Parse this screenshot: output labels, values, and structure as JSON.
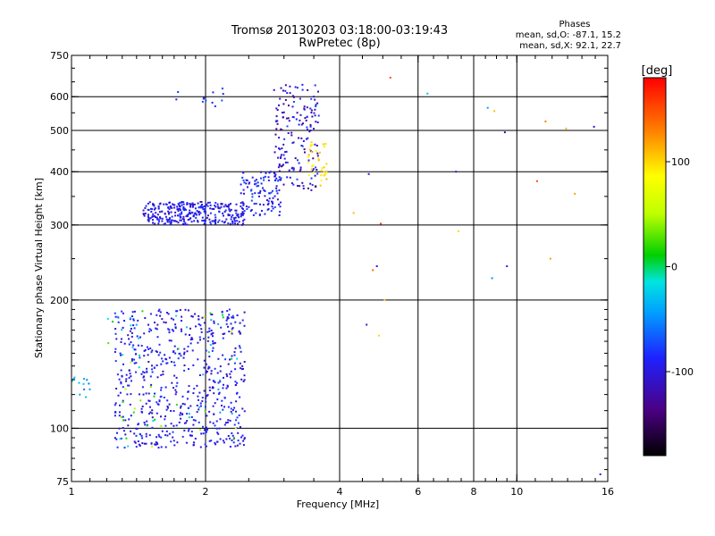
{
  "chart_data": {
    "type": "scatter",
    "title": "Tromsø 20130203 03:18:00-03:19:43",
    "subtitle": "RwPretec (8p)",
    "xlabel": "Frequency [MHz]",
    "ylabel": "Stationary phase Virtual Height [km]",
    "x_scale": "log",
    "y_scale": "log",
    "xlim": [
      1,
      16
    ],
    "ylim": [
      75,
      750
    ],
    "x_ticks": [
      1,
      2,
      4,
      6,
      8,
      10,
      16
    ],
    "x_tick_labels": [
      "1",
      "2",
      "4",
      "6",
      "8",
      "10",
      "16"
    ],
    "x_grid": [
      2,
      4,
      6,
      8,
      10
    ],
    "y_ticks": [
      75,
      100,
      200,
      300,
      400,
      500,
      600,
      750
    ],
    "y_tick_labels": [
      "75",
      "100",
      "200",
      "300",
      "400",
      "500",
      "600",
      "750"
    ],
    "y_grid": [
      100,
      200,
      300,
      400,
      500,
      600
    ],
    "grid": true,
    "stats": {
      "heading": "Phases",
      "line_o": "mean, sd,O: -87.1, 15.2",
      "line_x": "mean, sd,X:  92.1, 22.7"
    },
    "colorbar": {
      "label": "[deg]",
      "range": [
        -180,
        180
      ],
      "ticks": [
        100,
        0,
        -100
      ],
      "tick_labels": [
        "100",
        "0",
        "-100"
      ]
    },
    "clusters": [
      {
        "f": [
          1.45,
          2.45
        ],
        "h": [
          300,
          340
        ],
        "phase": [
          -115,
          -75
        ],
        "n": 320
      },
      {
        "f": [
          2.4,
          2.95
        ],
        "h": [
          315,
          400
        ],
        "phase": [
          -110,
          -70
        ],
        "n": 110
      },
      {
        "f": [
          2.85,
          3.6
        ],
        "h": [
          360,
          640
        ],
        "phase": [
          -140,
          -70
        ],
        "n": 170
      },
      {
        "f": [
          3.4,
          3.75
        ],
        "h": [
          370,
          470
        ],
        "phase": [
          80,
          120
        ],
        "n": 35
      },
      {
        "f": [
          1.25,
          2.45
        ],
        "h": [
          90,
          190
        ],
        "phase": [
          -115,
          -75
        ],
        "n": 620
      },
      {
        "f": [
          1.2,
          2.4
        ],
        "h": [
          90,
          190
        ],
        "phase": [
          -40,
          60
        ],
        "n": 60
      },
      {
        "f": [
          1.0,
          1.1
        ],
        "h": [
          118,
          132
        ],
        "phase": [
          -60,
          -25
        ],
        "n": 12
      },
      {
        "f": [
          1.7,
          2.2
        ],
        "h": [
          560,
          640
        ],
        "phase": [
          -100,
          -60
        ],
        "n": 12
      }
    ],
    "points": [
      {
        "f": 4.3,
        "h": 320,
        "phase": 110
      },
      {
        "f": 4.65,
        "h": 395,
        "phase": -110
      },
      {
        "f": 4.75,
        "h": 235,
        "phase": 140
      },
      {
        "f": 4.85,
        "h": 240,
        "phase": -100
      },
      {
        "f": 4.95,
        "h": 302,
        "phase": 160
      },
      {
        "f": 5.05,
        "h": 200,
        "phase": 105
      },
      {
        "f": 5.2,
        "h": 665,
        "phase": 150
      },
      {
        "f": 6.3,
        "h": 610,
        "phase": -30
      },
      {
        "f": 7.3,
        "h": 400,
        "phase": -100
      },
      {
        "f": 7.4,
        "h": 290,
        "phase": 100
      },
      {
        "f": 8.6,
        "h": 565,
        "phase": -40
      },
      {
        "f": 8.8,
        "h": 225,
        "phase": -50
      },
      {
        "f": 8.9,
        "h": 555,
        "phase": 110
      },
      {
        "f": 9.4,
        "h": 495,
        "phase": -120
      },
      {
        "f": 9.5,
        "h": 240,
        "phase": -95
      },
      {
        "f": 11.1,
        "h": 380,
        "phase": 150
      },
      {
        "f": 11.6,
        "h": 525,
        "phase": 130
      },
      {
        "f": 11.9,
        "h": 250,
        "phase": 120
      },
      {
        "f": 12.9,
        "h": 505,
        "phase": 110
      },
      {
        "f": 13.5,
        "h": 355,
        "phase": 120
      },
      {
        "f": 14.9,
        "h": 510,
        "phase": -110
      },
      {
        "f": 15.4,
        "h": 78,
        "phase": -100
      },
      {
        "f": 4.6,
        "h": 175,
        "phase": -100
      },
      {
        "f": 4.9,
        "h": 165,
        "phase": 100
      },
      {
        "f": 3.5,
        "h": 600,
        "phase": -110
      },
      {
        "f": 3.3,
        "h": 640,
        "phase": -90
      }
    ]
  }
}
